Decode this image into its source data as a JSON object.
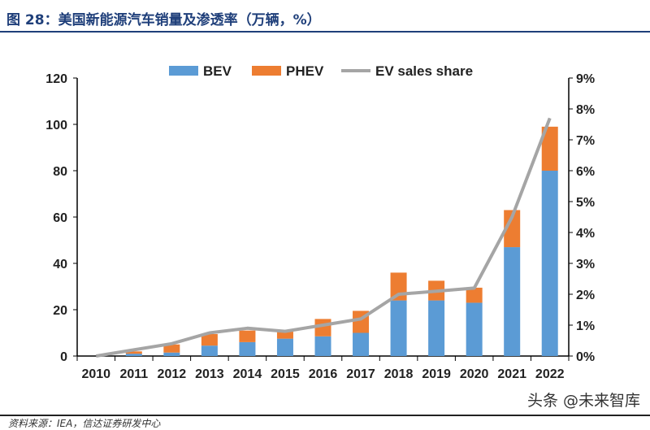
{
  "header": {
    "title": "图 28：美国新能源汽车销量及渗透率（万辆，%）"
  },
  "footer": {
    "watermark": "头条 @未来智库",
    "source": "资料来源：IEA，信达证券研发中心"
  },
  "chart_data": {
    "type": "bar",
    "stacked": true,
    "categories": [
      "2010",
      "2011",
      "2012",
      "2013",
      "2014",
      "2015",
      "2016",
      "2017",
      "2018",
      "2019",
      "2020",
      "2021",
      "2022"
    ],
    "series": [
      {
        "name": "BEV",
        "color": "#5b9bd5",
        "axis": "left",
        "values": [
          0,
          1,
          1.5,
          4.5,
          6,
          7.5,
          8.5,
          10,
          24,
          24,
          23,
          47,
          80
        ]
      },
      {
        "name": "PHEV",
        "color": "#ed7d31",
        "axis": "left",
        "values": [
          0,
          1,
          3.5,
          5,
          5,
          3,
          7.5,
          9.5,
          12,
          8.5,
          6.5,
          16,
          19
        ]
      },
      {
        "name": "EV sales share",
        "type": "line",
        "color": "#a5a5a5",
        "axis": "right",
        "values": [
          0,
          0.2,
          0.4,
          0.75,
          0.9,
          0.8,
          1.0,
          1.2,
          2.0,
          2.1,
          2.2,
          4.5,
          7.7
        ]
      }
    ],
    "ylim": [
      0,
      120
    ],
    "yticks": [
      "0",
      "20",
      "40",
      "60",
      "80",
      "100",
      "120"
    ],
    "y2lim": [
      0,
      9
    ],
    "y2ticks": [
      "0%",
      "1%",
      "2%",
      "3%",
      "4%",
      "5%",
      "6%",
      "7%",
      "8%",
      "9%"
    ],
    "legend": "top"
  }
}
